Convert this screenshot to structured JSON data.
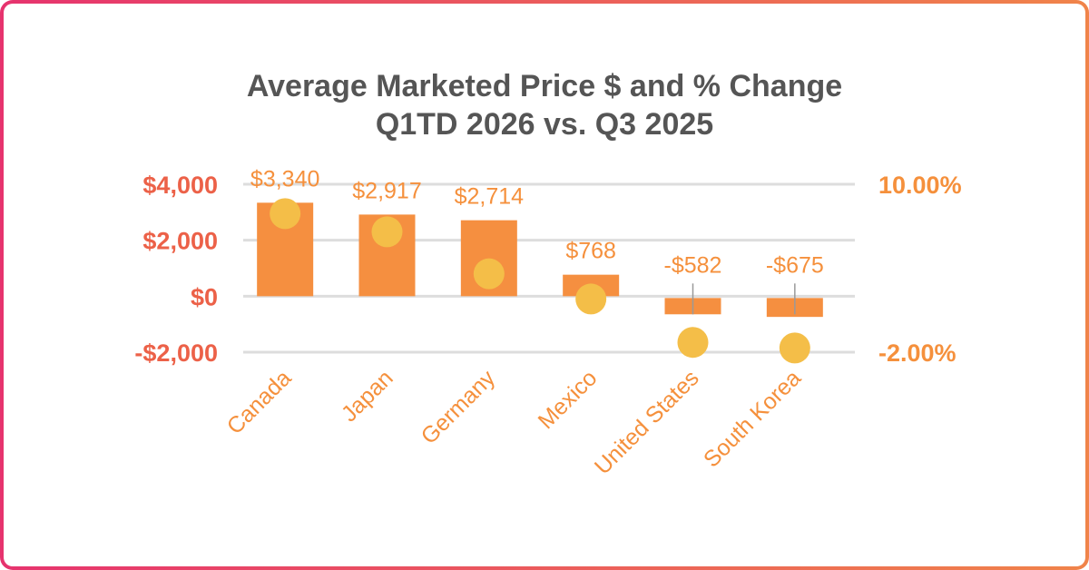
{
  "chart_data": {
    "type": "bar+scatter",
    "title_lines": [
      "Average Marketed Price $ and % Change",
      "Q1TD 2026 vs. Q3 2025"
    ],
    "categories": [
      "Canada",
      "Japan",
      "Germany",
      "Mexico",
      "United States",
      "South Korea"
    ],
    "series": [
      {
        "kind": "bar",
        "axis": "left",
        "values": [
          3340,
          2917,
          2714,
          768,
          -582,
          -675
        ],
        "labels": [
          "$3,340",
          "$2,917",
          "$2,714",
          "$768",
          "-$582",
          "-$675"
        ]
      },
      {
        "kind": "scatter",
        "axis": "right",
        "values": [
          7.9,
          6.6,
          3.6,
          1.8,
          -1.3,
          -1.7
        ]
      }
    ],
    "left_axis": {
      "range": [
        -2000,
        4000
      ],
      "ticks": [
        4000,
        2000,
        0,
        -2000
      ],
      "tick_labels": [
        "$4,000",
        "$2,000",
        "$0",
        "-$2,000"
      ]
    },
    "right_axis": {
      "range": [
        -2,
        10
      ],
      "ticks": [
        10,
        -2
      ],
      "tick_labels": [
        "10.00%",
        "-2.00%"
      ]
    },
    "grid": true,
    "colors": {
      "bar": "#f58f40",
      "dot": "#f4be48",
      "left_axis": "#ec6148",
      "right_axis": "#f5903c",
      "grid": "#dddddd",
      "label": "#f5903c",
      "border_start": "#e6336e",
      "border_end": "#f0844a"
    }
  }
}
